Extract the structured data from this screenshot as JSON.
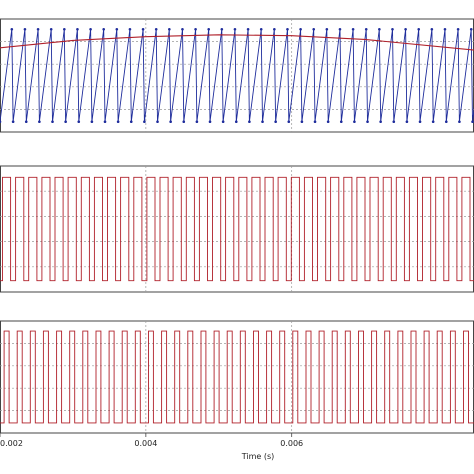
{
  "chart_data": [
    {
      "type": "line",
      "panel": "top",
      "title": "",
      "xlabel": "",
      "ylabel": "",
      "grid": true,
      "xlim": [
        0.002,
        0.0085
      ],
      "ylim": [
        -1.1,
        1.1
      ],
      "series": [
        {
          "name": "",
          "color": "#1f2d9c",
          "kind": "sawtooth-carrier",
          "period": 0.00018,
          "x_start": 0.002,
          "x_end": 0.0085,
          "amplitude": 1.0
        },
        {
          "name": "",
          "color": "#b0202a",
          "kind": "reference",
          "x": [
            0.002,
            0.003,
            0.004,
            0.005,
            0.006,
            0.007,
            0.0085
          ],
          "y": [
            0.6,
            0.76,
            0.84,
            0.88,
            0.86,
            0.78,
            0.55
          ]
        }
      ]
    },
    {
      "type": "line",
      "panel": "middle",
      "title": "",
      "xlabel": "",
      "ylabel": "",
      "grid": true,
      "xlim": [
        0.002,
        0.0085
      ],
      "ylim": [
        0,
        1
      ],
      "series": [
        {
          "name": "",
          "color": "#b0202a",
          "kind": "pwm",
          "period": 0.00018,
          "duty": 0.62,
          "x_start": 0.002,
          "x_end": 0.0085
        }
      ]
    },
    {
      "type": "line",
      "panel": "bottom",
      "title": "",
      "xlabel": "Time (s)",
      "ylabel": "",
      "grid": true,
      "xlim": [
        0.002,
        0.0085
      ],
      "ylim": [
        0,
        1
      ],
      "xticks": [
        0.002,
        0.004,
        0.006
      ],
      "xtick_labels": [
        "0.002",
        "0.004",
        "0.006"
      ],
      "series": [
        {
          "name": "",
          "color": "#b0202a",
          "kind": "pwm",
          "period": 0.00018,
          "duty": 0.38,
          "x_start": 0.002,
          "x_end": 0.0085
        }
      ]
    }
  ]
}
